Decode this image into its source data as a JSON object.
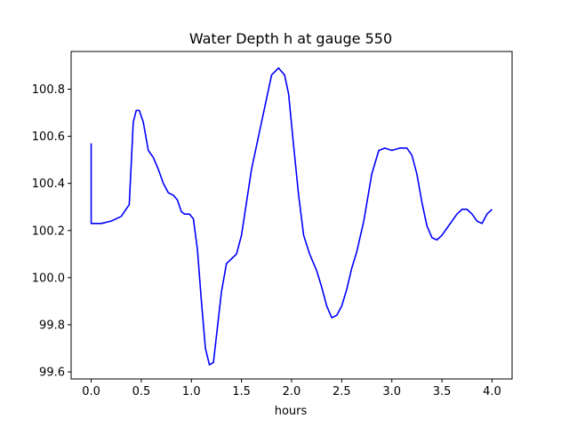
{
  "chart_data": {
    "type": "line",
    "title": "Water Depth h at gauge 550",
    "xlabel": "hours",
    "ylabel": "",
    "xlim": [
      -0.2,
      4.2
    ],
    "ylim": [
      99.57,
      100.96
    ],
    "xticks": [
      0.0,
      0.5,
      1.0,
      1.5,
      2.0,
      2.5,
      3.0,
      3.5,
      4.0
    ],
    "xtick_labels": [
      "0.0",
      "0.5",
      "1.0",
      "1.5",
      "2.0",
      "2.5",
      "3.0",
      "3.5",
      "4.0"
    ],
    "yticks": [
      99.6,
      99.8,
      100.0,
      100.2,
      100.4,
      100.6,
      100.8
    ],
    "ytick_labels": [
      "99.6",
      "99.8",
      "100.0",
      "100.2",
      "100.4",
      "100.6",
      "100.8"
    ],
    "grid": false,
    "series": [
      {
        "color": "#0000ff",
        "x": [
          0.0,
          0.0,
          0.1,
          0.2,
          0.3,
          0.38,
          0.42,
          0.45,
          0.48,
          0.52,
          0.57,
          0.62,
          0.67,
          0.72,
          0.77,
          0.82,
          0.86,
          0.9,
          0.93,
          0.98,
          1.02,
          1.06,
          1.1,
          1.14,
          1.18,
          1.22,
          1.26,
          1.3,
          1.35,
          1.4,
          1.45,
          1.5,
          1.55,
          1.6,
          1.7,
          1.8,
          1.87,
          1.93,
          1.97,
          2.02,
          2.07,
          2.12,
          2.18,
          2.25,
          2.3,
          2.35,
          2.4,
          2.45,
          2.5,
          2.55,
          2.6,
          2.65,
          2.72,
          2.8,
          2.87,
          2.93,
          3.0,
          3.08,
          3.15,
          3.2,
          3.25,
          3.3,
          3.35,
          3.4,
          3.45,
          3.5,
          3.55,
          3.6,
          3.65,
          3.7,
          3.75,
          3.8,
          3.85,
          3.9,
          3.95,
          4.0
        ],
        "y": [
          100.57,
          100.23,
          100.23,
          100.24,
          100.26,
          100.31,
          100.66,
          100.71,
          100.71,
          100.66,
          100.54,
          100.51,
          100.46,
          100.4,
          100.36,
          100.35,
          100.33,
          100.28,
          100.27,
          100.27,
          100.25,
          100.12,
          99.9,
          99.7,
          99.63,
          99.64,
          99.79,
          99.94,
          100.06,
          100.08,
          100.1,
          100.18,
          100.32,
          100.46,
          100.66,
          100.86,
          100.89,
          100.86,
          100.78,
          100.56,
          100.35,
          100.18,
          100.1,
          100.03,
          99.96,
          99.88,
          99.83,
          99.84,
          99.88,
          99.95,
          100.04,
          100.11,
          100.24,
          100.44,
          100.54,
          100.55,
          100.54,
          100.55,
          100.55,
          100.52,
          100.44,
          100.32,
          100.22,
          100.17,
          100.16,
          100.18,
          100.21,
          100.24,
          100.27,
          100.29,
          100.29,
          100.27,
          100.24,
          100.23,
          100.27,
          100.29
        ]
      }
    ]
  }
}
